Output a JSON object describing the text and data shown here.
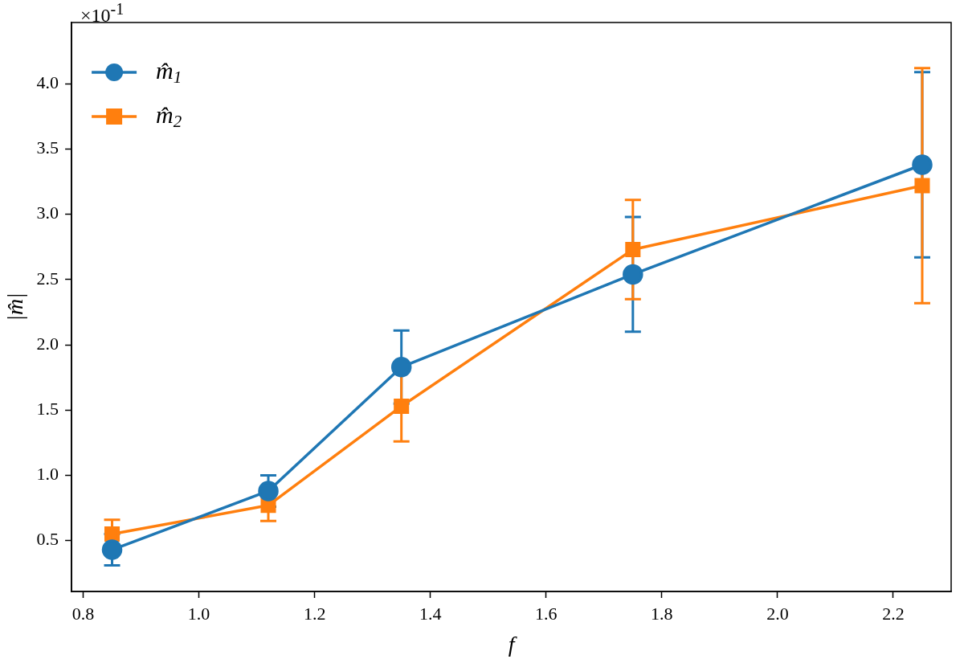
{
  "chart_data": {
    "type": "line",
    "xlabel": "f",
    "ylabel": "|m̂|",
    "annotations": [
      "×10$^{-1}$"
    ],
    "x": [
      0.85,
      1.12,
      1.35,
      1.75,
      2.25
    ],
    "series": [
      {
        "name": "m̂$_{1}$",
        "color": "#1f77b4",
        "marker": "circle",
        "values": [
          0.43,
          0.88,
          1.83,
          2.54,
          3.38
        ],
        "errors": [
          0.12,
          0.12,
          0.28,
          0.44,
          0.71
        ]
      },
      {
        "name": "m̂$_{2}$",
        "color": "#ff7f0e",
        "marker": "square",
        "values": [
          0.55,
          0.77,
          1.53,
          2.73,
          3.22
        ],
        "errors": [
          0.11,
          0.12,
          0.27,
          0.38,
          0.9
        ]
      }
    ],
    "xlim": [
      0.78,
      2.3
    ],
    "xticks": [
      0.8,
      {
        "value": 1,
        "label": "1.0"
      },
      1.2,
      1.4,
      1.6,
      1.8,
      {
        "value": 2,
        "label": "2.0"
      },
      2.2
    ],
    "ylim": [
      0.11,
      4.47
    ],
    "yticks": [
      0.5,
      {
        "value": 1,
        "label": "1.0"
      },
      1.5,
      {
        "value": 2,
        "label": "2.0"
      },
      2.5,
      {
        "value": 3,
        "label": "3.0"
      },
      3.5,
      {
        "value": 4,
        "label": "4.0"
      }
    ],
    "grid": false,
    "legend": "top left",
    "line_style": "solid"
  }
}
